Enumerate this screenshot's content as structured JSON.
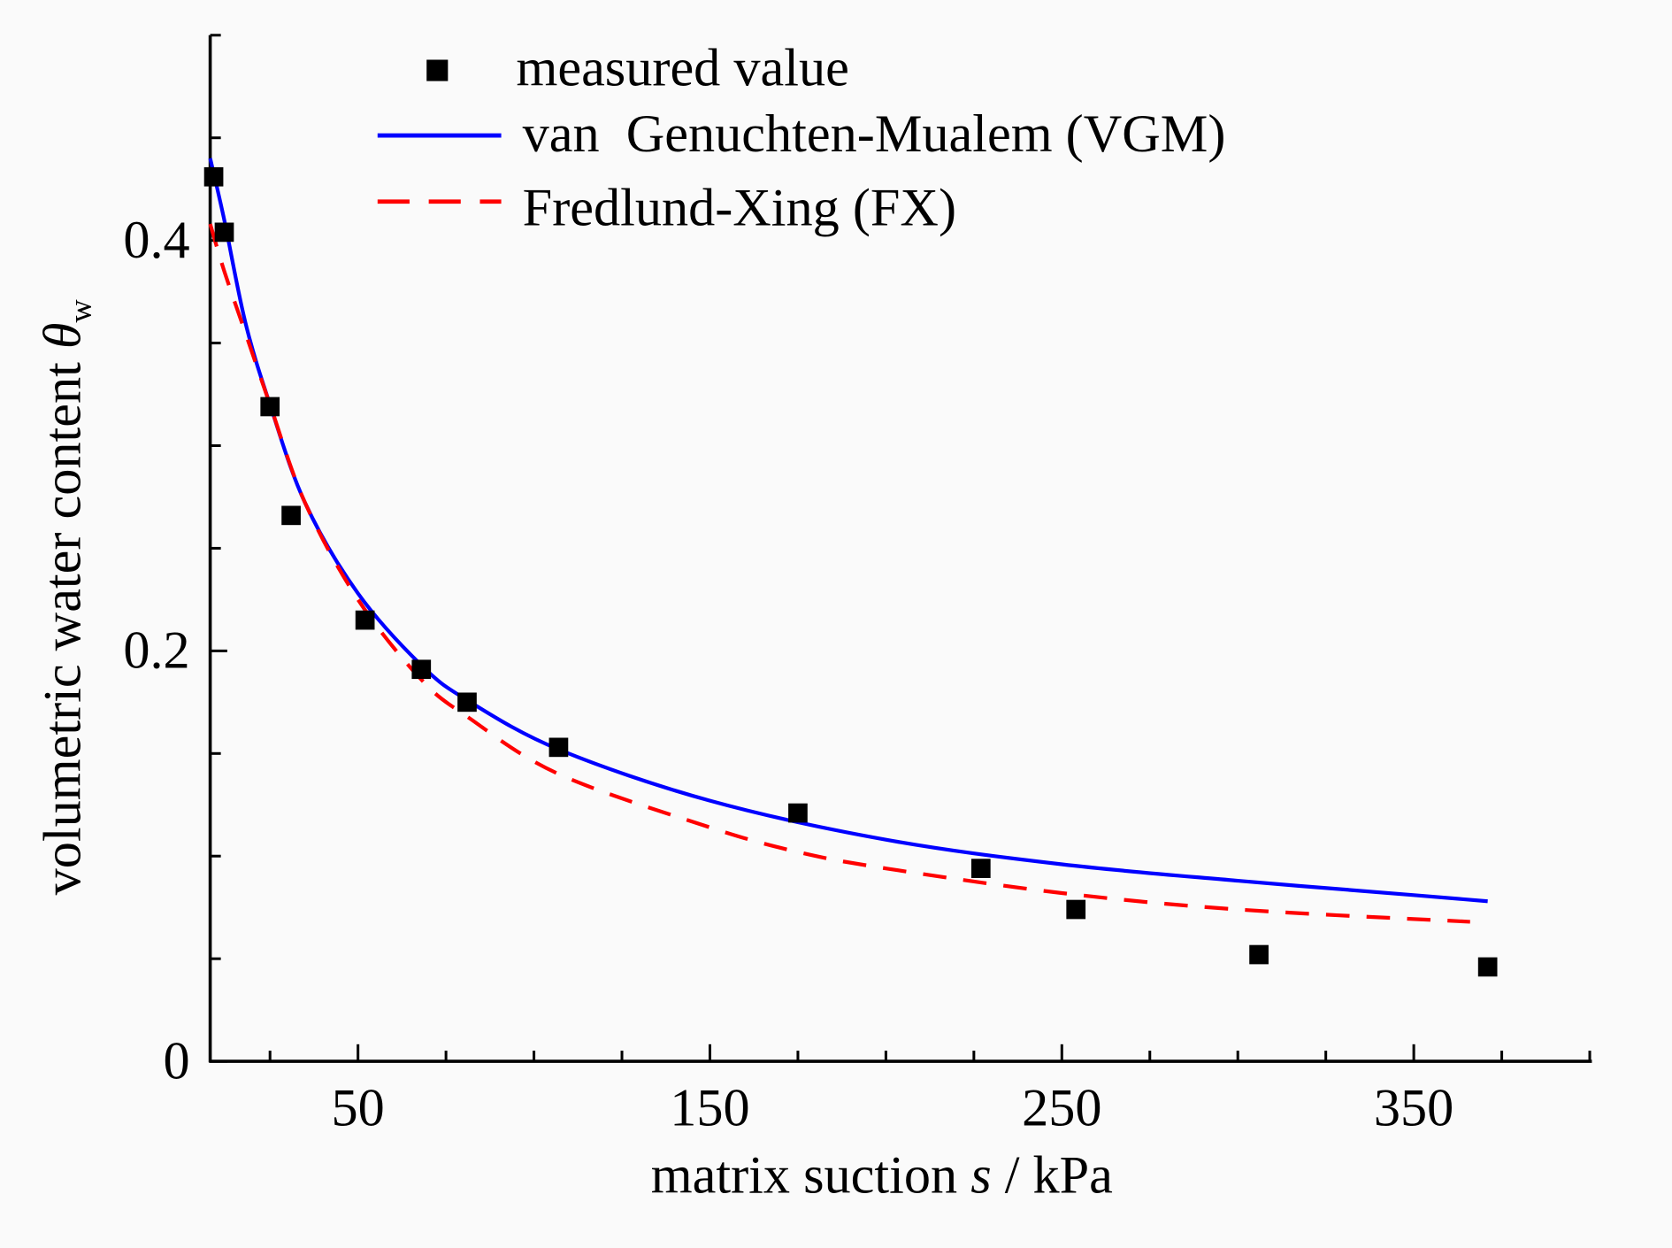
{
  "chart_data": {
    "type": "scatter",
    "title": "",
    "xlabel": "matrix suction s / kPa",
    "xlabel_parts": {
      "pre": "matrix suction ",
      "var": "s",
      "post": " / kPa"
    },
    "ylabel": "volumetric water content θw",
    "ylabel_parts": {
      "pre": "volumetric water content ",
      "var": "θ",
      "sub": "w"
    },
    "xlim": [
      8,
      400
    ],
    "ylim": [
      0,
      0.5
    ],
    "x_ticks": [
      50,
      150,
      250,
      350
    ],
    "x_tick_labels": [
      "50",
      "150",
      "250",
      "350"
    ],
    "x_minor_step": 25,
    "y_ticks": [
      0,
      0.2,
      0.4
    ],
    "y_tick_labels": [
      "0",
      "0.2",
      "0.4"
    ],
    "y_minor_step": 0.05,
    "grid": false,
    "legend_position": "top",
    "series": [
      {
        "name": "measured value",
        "kind": "marker",
        "color": "#000000",
        "x": [
          9,
          12,
          25,
          31,
          52,
          68,
          81,
          107,
          175,
          227,
          254,
          306,
          371
        ],
        "y": [
          0.431,
          0.404,
          0.319,
          0.266,
          0.215,
          0.191,
          0.175,
          0.153,
          0.121,
          0.094,
          0.074,
          0.052,
          0.046
        ]
      },
      {
        "name": "van  Genuchten-Mualem (VGM)",
        "kind": "solid",
        "color": "#0000ff",
        "x": [
          8,
          12,
          18,
          25,
          35,
          50,
          68,
          81,
          107,
          150,
          200,
          250,
          300,
          350,
          371
        ],
        "y": [
          0.44,
          0.41,
          0.36,
          0.32,
          0.272,
          0.228,
          0.193,
          0.176,
          0.152,
          0.127,
          0.108,
          0.096,
          0.088,
          0.081,
          0.078
        ]
      },
      {
        "name": "Fredlund-Xing (FX)",
        "kind": "dashed",
        "color": "#ff0000",
        "x": [
          8,
          12,
          18,
          25,
          35,
          50,
          68,
          81,
          107,
          150,
          175,
          200,
          250,
          300,
          366
        ],
        "y": [
          0.408,
          0.385,
          0.355,
          0.32,
          0.272,
          0.225,
          0.186,
          0.168,
          0.14,
          0.114,
          0.102,
          0.094,
          0.082,
          0.074,
          0.068
        ]
      }
    ]
  }
}
